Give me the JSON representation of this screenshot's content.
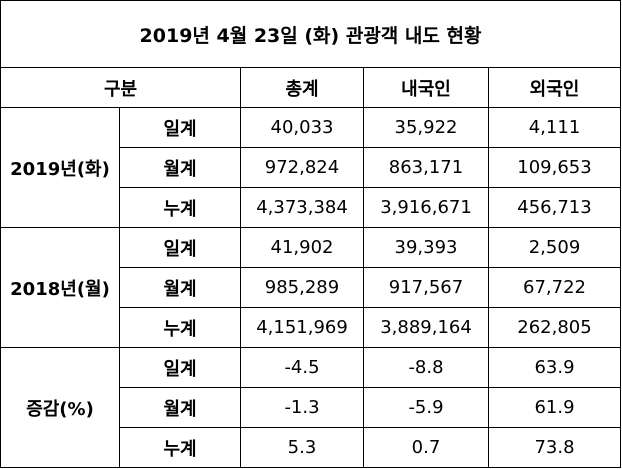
{
  "title": "2019년 4월 23일 (화) 관광객 내도 현황",
  "header": [
    "구분",
    "총계",
    "내국인",
    "외국인"
  ],
  "groups": [
    {
      "label": "2019년(화)",
      "rows": [
        {
          "label": "일계",
          "values": [
            "40,033",
            "35,922",
            "4,111"
          ]
        },
        {
          "label": "월계",
          "values": [
            "972,824",
            "863,171",
            "109,653"
          ]
        },
        {
          "label": "누계",
          "values": [
            "4,373,384",
            "3,916,671",
            "456,713"
          ]
        }
      ]
    },
    {
      "label": "2018년(월)",
      "rows": [
        {
          "label": "일계",
          "values": [
            "41,902",
            "39,393",
            "2,509"
          ]
        },
        {
          "label": "월계",
          "values": [
            "985,289",
            "917,567",
            "67,722"
          ]
        },
        {
          "label": "누계",
          "values": [
            "4,151,969",
            "3,889,164",
            "262,805"
          ]
        }
      ]
    },
    {
      "label": "증감(%)",
      "rows": [
        {
          "label": "일계",
          "values": [
            "-4.5",
            "-8.8",
            "63.9"
          ]
        },
        {
          "label": "월계",
          "values": [
            "-1.3",
            "-5.9",
            "61.9"
          ]
        },
        {
          "label": "누계",
          "values": [
            "5.3",
            "0.7",
            "73.8"
          ]
        }
      ]
    }
  ]
}
